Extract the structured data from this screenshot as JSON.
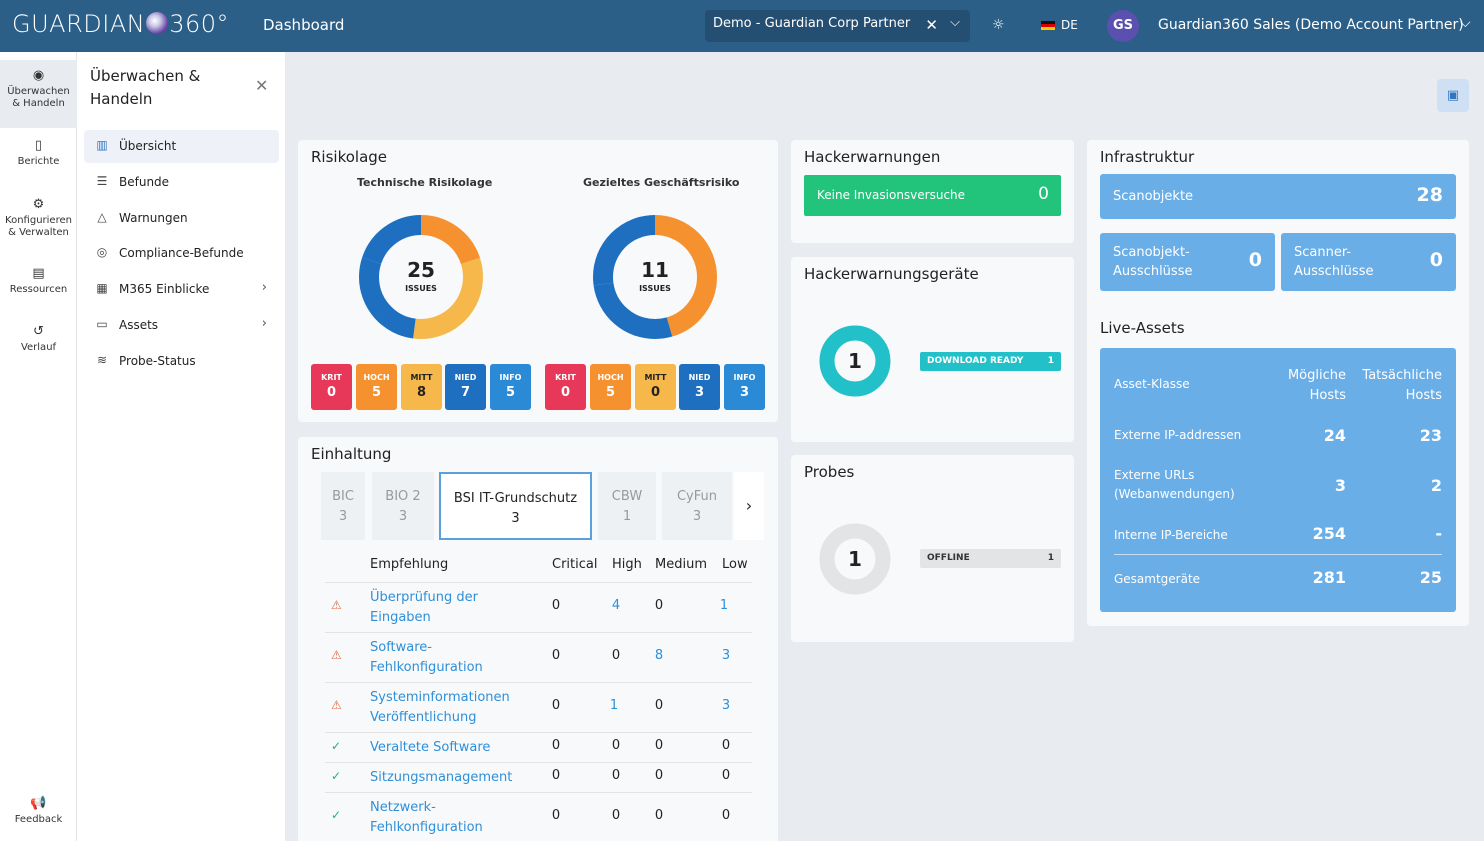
{
  "header": {
    "logo_text_left": "GUARDIAN",
    "logo_text_right": "360°",
    "title": "Dashboard",
    "tenant": "Demo - Guardian Corp Partner",
    "language": "DE",
    "avatar_initials": "GS",
    "user_name": "Guardian360 Sales (Demo Account Partner)"
  },
  "rail": {
    "items": [
      {
        "label": "Überwachen & Handeln",
        "icon": "eye-icon"
      },
      {
        "label": "Berichte",
        "icon": "document-icon"
      },
      {
        "label": "Konfigurieren & Verwalten",
        "icon": "gear-icon"
      },
      {
        "label": "Ressourcen",
        "icon": "book-icon"
      },
      {
        "label": "Verlauf",
        "icon": "history-icon"
      }
    ],
    "feedback": "Feedback"
  },
  "sidebar": {
    "title_line1": "Überwachen &",
    "title_line2": "Handeln",
    "items": [
      {
        "label": "Übersicht"
      },
      {
        "label": "Befunde"
      },
      {
        "label": "Warnungen"
      },
      {
        "label": "Compliance-Befunde"
      },
      {
        "label": "M365 Einblicke"
      },
      {
        "label": "Assets"
      },
      {
        "label": "Probe-Status"
      }
    ]
  },
  "risk": {
    "title": "Risikolage",
    "technical": {
      "title": "Technische Risikolage",
      "total": "25",
      "unit": "ISSUES",
      "krit": {
        "label": "KRIT",
        "value": "0"
      },
      "hoch": {
        "label": "HOCH",
        "value": "5"
      },
      "mitt": {
        "label": "MITT",
        "value": "8"
      },
      "nied": {
        "label": "NIED",
        "value": "7"
      },
      "info": {
        "label": "INFO",
        "value": "5"
      }
    },
    "business": {
      "title": "Gezieltes Geschäftsrisiko",
      "total": "11",
      "unit": "ISSUES",
      "krit": {
        "label": "KRIT",
        "value": "0"
      },
      "hoch": {
        "label": "HOCH",
        "value": "5"
      },
      "mitt": {
        "label": "MITT",
        "value": "0"
      },
      "nied": {
        "label": "NIED",
        "value": "3"
      },
      "info": {
        "label": "INFO",
        "value": "3"
      }
    },
    "colors": {
      "krit": "#e8385a",
      "hoch": "#f5922f",
      "mitt": "#f7b84b",
      "nied": "#1e6fbf",
      "info": "#2a8ad6"
    }
  },
  "hacker": {
    "title": "Hackerwarnungen",
    "bar_label": "Keine Invasionsversuche",
    "bar_value": "0"
  },
  "hacker_devices": {
    "title": "Hackerwarnungsgeräte",
    "count": "1",
    "tag_label": "DOWNLOAD READY",
    "tag_value": "1"
  },
  "probes": {
    "title": "Probes",
    "count": "1",
    "tag_label": "OFFLINE",
    "tag_value": "1"
  },
  "infra": {
    "title": "Infrastruktur",
    "scan_objects": {
      "label": "Scanobjekte",
      "value": "28"
    },
    "scan_excl": {
      "line1": "Scanobjekt-",
      "line2": "Ausschlüsse",
      "value": "0"
    },
    "scanner_excl": {
      "line1": "Scanner-",
      "line2": "Ausschlüsse",
      "value": "0"
    }
  },
  "live_assets": {
    "title": "Live-Assets",
    "head": {
      "c1": "Asset-Klasse",
      "c2a": "Mögliche",
      "c2b": "Hosts",
      "c3a": "Tatsächliche",
      "c3b": "Hosts"
    },
    "rows": [
      {
        "line1": "Externe IP-addressen",
        "line2": "",
        "possible": "24",
        "actual": "23"
      },
      {
        "line1": "Externe URLs",
        "line2": "(Webanwendungen)",
        "possible": "3",
        "actual": "2"
      },
      {
        "line1": "Interne IP-Bereiche",
        "line2": "",
        "possible": "254",
        "actual": "-"
      },
      {
        "line1": "Gesamtgeräte",
        "line2": "",
        "possible": "281",
        "actual": "25"
      }
    ]
  },
  "compliance": {
    "title": "Einhaltung",
    "tabs": [
      {
        "name": "BIC",
        "count": "3"
      },
      {
        "name": "BIO 2",
        "count": "3"
      },
      {
        "name": "BSI IT-Grundschutz",
        "count": "3"
      },
      {
        "name": "CBW",
        "count": "1"
      },
      {
        "name": "CyFun",
        "count": "3"
      }
    ],
    "columns": {
      "rec": "Empfehlung",
      "critical": "Critical",
      "high": "High",
      "medium": "Medium",
      "low": "Low"
    },
    "rows": [
      {
        "line1": "Überprüfung der",
        "line2": "Eingaben",
        "status": "warn",
        "critical": "0",
        "high": "4",
        "medium": "0",
        "low": "1"
      },
      {
        "line1": "Software-",
        "line2": "Fehlkonfiguration",
        "status": "warn",
        "critical": "0",
        "high": "0",
        "medium": "8",
        "low": "3"
      },
      {
        "line1": "Systeminformationen",
        "line2": "Veröffentlichung",
        "status": "warn",
        "critical": "0",
        "high": "1",
        "medium": "0",
        "low": "3"
      },
      {
        "line1": "Veraltete Software",
        "line2": "",
        "status": "ok",
        "critical": "0",
        "high": "0",
        "medium": "0",
        "low": "0"
      },
      {
        "line1": "Sitzungsmanagement",
        "line2": "",
        "status": "ok",
        "critical": "0",
        "high": "0",
        "medium": "0",
        "low": "0"
      },
      {
        "line1": "Netzwerk-",
        "line2": "Fehlkonfiguration",
        "status": "ok",
        "critical": "0",
        "high": "0",
        "medium": "0",
        "low": "0"
      }
    ]
  }
}
